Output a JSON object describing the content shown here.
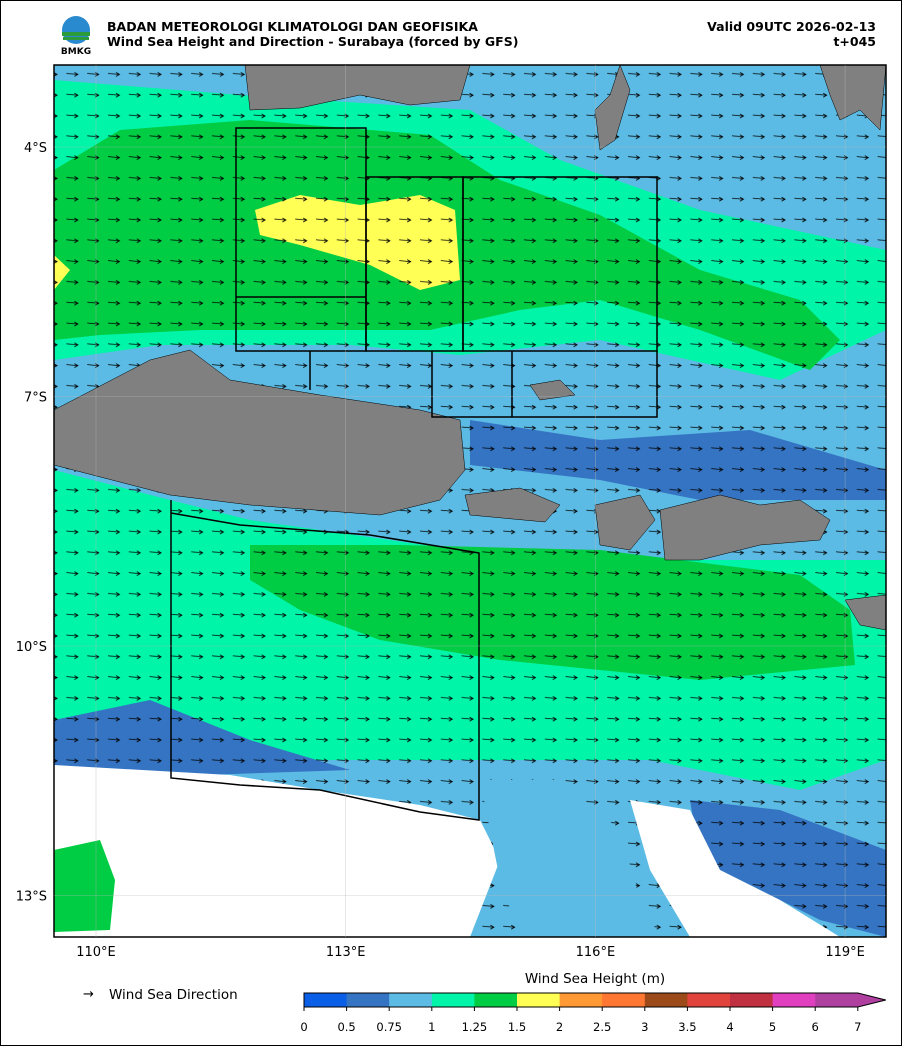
{
  "header": {
    "logo_text": "BMKG",
    "agency": "BADAN METEOROLOGI KLIMATOLOGI DAN GEOFISIKA",
    "title": "Wind Sea Height and Direction - Surabaya (forced by GFS)",
    "valid": "Valid 09UTC 2026-02-13",
    "step": "t+045"
  },
  "axes": {
    "lat_labels": [
      "4°S",
      "7°S",
      "10°S",
      "13°S"
    ],
    "lon_labels": [
      "110°E",
      "113°E",
      "116°E",
      "119°E"
    ]
  },
  "legend": {
    "direction_label": "Wind Sea Direction"
  },
  "colorbar": {
    "title": "Wind Sea Height (m)",
    "ticks": [
      "0",
      "0.5",
      "0.75",
      "1",
      "1.25",
      "1.5",
      "2",
      "2.5",
      "3",
      "3.5",
      "4",
      "5",
      "6",
      "7"
    ],
    "colors": [
      "#0b5fe6",
      "#3574c2",
      "#5cbbe4",
      "#00f5a8",
      "#00cc44",
      "#ffff55",
      "#ff9933",
      "#ff7733",
      "#9c4a1a",
      "#e0443c",
      "#c03040",
      "#e040c0",
      "#b040a0"
    ]
  }
}
